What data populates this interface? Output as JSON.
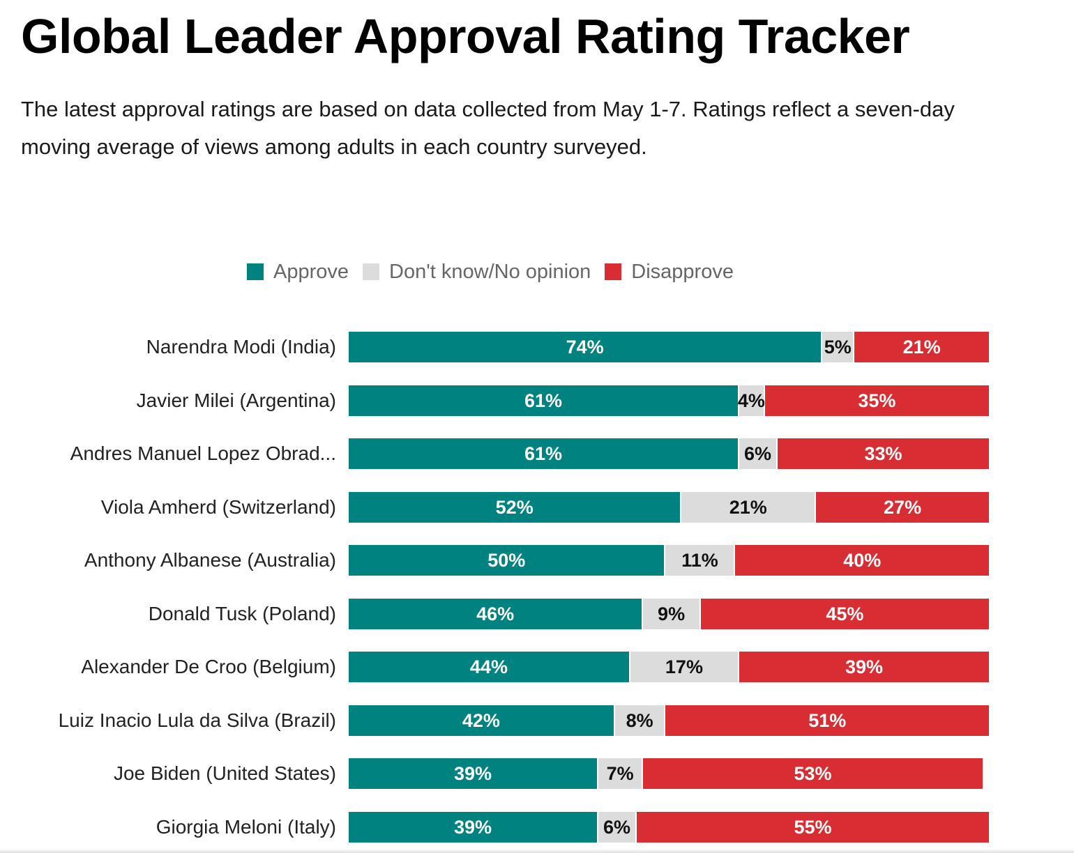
{
  "title": "Global Leader Approval Rating Tracker",
  "subtitle": "The latest approval ratings are based on data collected from May 1-7. Ratings reflect a seven-day moving average of views among adults in each country surveyed.",
  "legend": [
    {
      "label": "Approve",
      "color": "#008380"
    },
    {
      "label": "Don't know/No opinion",
      "color": "#dcdcdc"
    },
    {
      "label": "Disapprove",
      "color": "#d72d33"
    }
  ],
  "chart_data": {
    "type": "bar",
    "orientation": "horizontal",
    "stacked": true,
    "xlim": [
      0,
      100
    ],
    "categories": [
      "Narendra Modi (India)",
      "Javier Milei (Argentina)",
      "Andres Manuel Lopez Obrad...",
      "Viola Amherd (Switzerland)",
      "Anthony Albanese (Australia)",
      "Donald Tusk (Poland)",
      "Alexander De Croo (Belgium)",
      "Luiz Inacio Lula da Silva (Brazil)",
      "Joe Biden (United States)",
      "Giorgia Meloni (Italy)"
    ],
    "series": [
      {
        "name": "Approve",
        "color": "#008380",
        "values": [
          74,
          61,
          61,
          52,
          50,
          46,
          44,
          42,
          39,
          39
        ]
      },
      {
        "name": "Don't know/No opinion",
        "color": "#dcdcdc",
        "values": [
          5,
          4,
          6,
          21,
          11,
          9,
          17,
          8,
          7,
          6
        ]
      },
      {
        "name": "Disapprove",
        "color": "#d72d33",
        "values": [
          21,
          35,
          33,
          27,
          40,
          45,
          39,
          51,
          53,
          55
        ]
      }
    ],
    "data_label_suffix": "%",
    "legend_position": "top-center",
    "grid": false
  }
}
